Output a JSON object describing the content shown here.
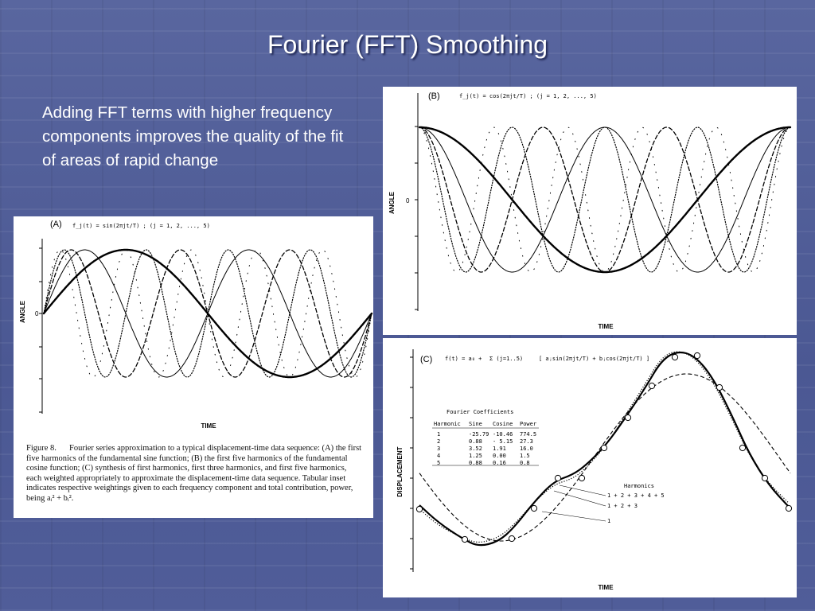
{
  "slide": {
    "title": "Fourier (FFT) Smoothing",
    "body": "Adding FFT terms with higher frequency components improves the quality of the fit of areas of rapid change"
  },
  "panels": {
    "a": {
      "label": "(A)",
      "formula": "f_j(t) = sin(2πjt/T) ; (j = 1, 2, ..., 5)",
      "ylabel": "ANGLE",
      "ytick": "0",
      "xlabel": "TIME"
    },
    "b": {
      "label": "(B)",
      "formula": "f_j(t) = cos(2πjt/T) ; (j = 1, 2, ..., 5)",
      "ylabel": "ANGLE",
      "ytick": "0",
      "xlabel": "TIME"
    },
    "c": {
      "label": "(C)",
      "formula_lhs": "f(t) = a₀ +",
      "formula_sum": "Σ (j=1..5)",
      "formula_rhs": "[ aⱼsin(2πjt/T) + bⱼcos(2πjt/T) ]",
      "ylabel": "DISPLACEMENT",
      "xlabel": "TIME",
      "harmonics_title": "Harmonics",
      "harmonics": [
        "1 + 2 + 3 + 4 + 5",
        "1 + 2 + 3",
        "1"
      ],
      "table": {
        "title": "Fourier  Coefficients",
        "headers": [
          "Harmonic",
          "Sine",
          "Cosine",
          "Power"
        ],
        "rows": [
          [
            "1",
            "-25.79",
            "-10.46",
            "774.5"
          ],
          [
            "2",
            "0.88",
            "- 5.15",
            "27.3"
          ],
          [
            "3",
            "3.52",
            "1.91",
            "16.0"
          ],
          [
            "4",
            "1.25",
            "0.00",
            "1.5"
          ],
          [
            "5",
            "0.88",
            "0.16",
            "0.8"
          ]
        ]
      }
    }
  },
  "caption": {
    "label": "Figure 8.",
    "text": "Fourier series approximation to a typical displacement-time data sequence: (A) the first five harmonics of the fundamental sine function; (B) the first five harmonics of the fundamental cosine function; (C) synthesis of first harmonics, first three harmonics, and first five harmonics, each weighted appropriately to approximate the displacement-time data sequence. Tabular inset indicates respective weightings given to each frequency component and total contribution, power, being aᵢ² + bᵢ²."
  }
}
